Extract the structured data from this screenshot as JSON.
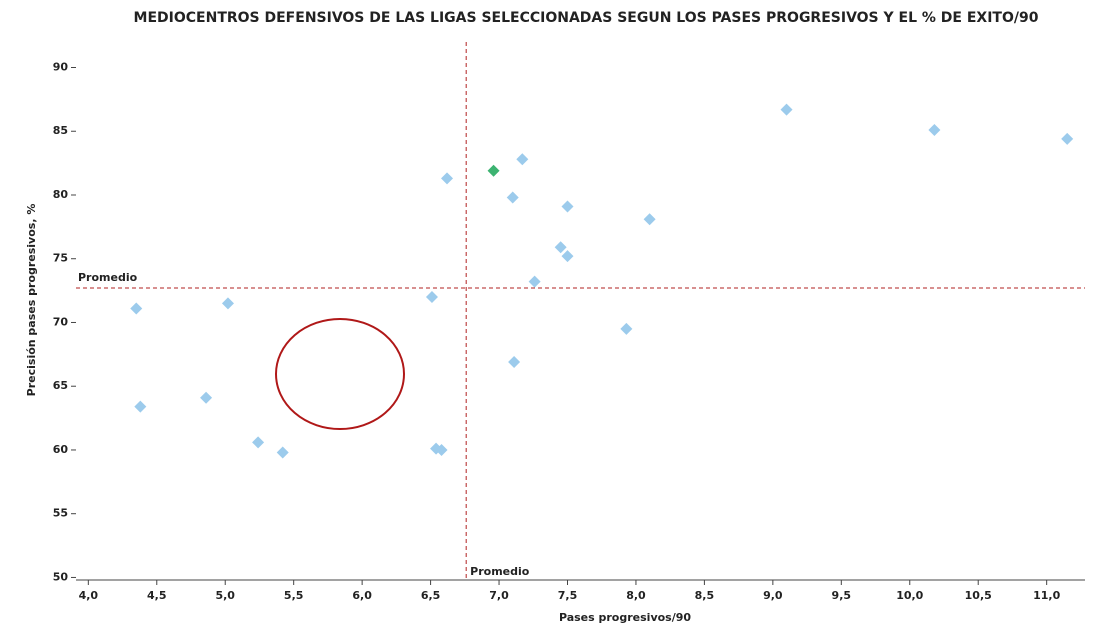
{
  "chart_data": {
    "type": "scatter",
    "title": "MEDIOCENTROS DEFENSIVOS DE LAS LIGAS SELECCIONADAS SEGUN LOS PASES PROGRESIVOS Y EL % DE EXITO/90",
    "x_label": "Pases progresivos/90",
    "y_label": "Precisión pases progresivos, %",
    "x": [
      4.35,
      4.38,
      4.86,
      5.02,
      5.24,
      5.42,
      6.51,
      6.54,
      6.58,
      6.62,
      6.96,
      7.1,
      7.17,
      7.11,
      7.26,
      7.45,
      7.5,
      7.5,
      7.93,
      8.1,
      9.1,
      10.18,
      11.15
    ],
    "values": [
      71.1,
      63.4,
      64.1,
      71.5,
      60.6,
      59.8,
      72.0,
      60.1,
      60.0,
      81.3,
      81.9,
      79.8,
      82.8,
      66.9,
      73.2,
      75.9,
      79.1,
      75.2,
      69.5,
      78.1,
      86.7,
      85.1,
      84.4
    ],
    "point_colors": [
      "#9ccbec",
      "#9ccbec",
      "#9ccbec",
      "#9ccbec",
      "#9ccbec",
      "#9ccbec",
      "#9ccbec",
      "#9ccbec",
      "#9ccbec",
      "#9ccbec",
      "#3cb371",
      "#9ccbec",
      "#9ccbec",
      "#9ccbec",
      "#9ccbec",
      "#9ccbec",
      "#9ccbec",
      "#9ccbec",
      "#9ccbec",
      "#9ccbec",
      "#9ccbec",
      "#9ccbec",
      "#9ccbec"
    ],
    "xlim": [
      3.91,
      11.28
    ],
    "ylim": [
      49.8,
      92
    ],
    "xticks": [
      {
        "value": 4,
        "label": "4,0"
      },
      {
        "value": 4.5,
        "label": "4,5"
      },
      {
        "value": 5,
        "label": "5,0"
      },
      {
        "value": 5.5,
        "label": "5,5"
      },
      {
        "value": 6,
        "label": "6,0"
      },
      {
        "value": 6.5,
        "label": "6,5"
      },
      {
        "value": 7,
        "label": "7,0"
      },
      {
        "value": 7.5,
        "label": "7,5"
      },
      {
        "value": 8,
        "label": "8,0"
      },
      {
        "value": 8.5,
        "label": "8,5"
      },
      {
        "value": 9,
        "label": "9,0"
      },
      {
        "value": 9.5,
        "label": "9,5"
      },
      {
        "value": 10,
        "label": "10,0"
      },
      {
        "value": 10.5,
        "label": "10,5"
      },
      {
        "value": 11,
        "label": "11,0"
      }
    ],
    "yticks": [
      50,
      55,
      60,
      65,
      70,
      75,
      80,
      85,
      90
    ],
    "avg_x": 6.76,
    "avg_y": 72.7,
    "avg_x_label": "Promedio",
    "avg_y_label": "Promedio",
    "avg_line_color": "#b22222"
  }
}
